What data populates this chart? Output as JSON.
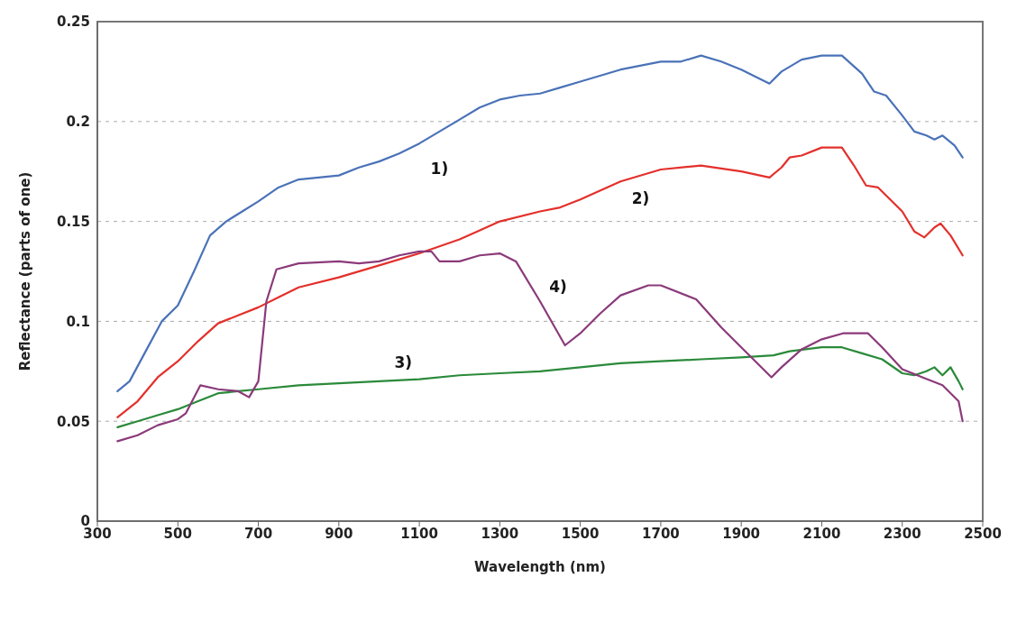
{
  "chart_data": {
    "type": "line",
    "xlabel": "Wavelength (nm)",
    "ylabel": "Reflectance (parts of one)",
    "xlim": [
      300,
      2500
    ],
    "xticks": [
      300,
      500,
      700,
      900,
      1100,
      1300,
      1500,
      1700,
      1900,
      2100,
      2300,
      2500
    ],
    "ylim": [
      0,
      0.25
    ],
    "yticks": [
      0,
      0.05,
      0.1,
      0.15,
      0.2,
      0.25
    ],
    "grid": "y",
    "legend": false,
    "marker": "none",
    "line_style": "solid",
    "annotations": [
      "1)",
      "2)",
      "3)",
      "4)"
    ],
    "series": [
      {
        "color": "#4a72b8",
        "x": [
          350,
          380,
          420,
          460,
          500,
          540,
          580,
          620,
          660,
          700,
          750,
          800,
          850,
          900,
          950,
          1000,
          1050,
          1100,
          1150,
          1200,
          1250,
          1300,
          1350,
          1400,
          1450,
          1500,
          1600,
          1700,
          1750,
          1800,
          1850,
          1900,
          1970,
          2000,
          2050,
          2100,
          2150,
          2200,
          2230,
          2260,
          2300,
          2330,
          2360,
          2380,
          2400,
          2430,
          2450
        ],
        "values": [
          0.065,
          0.07,
          0.085,
          0.1,
          0.108,
          0.125,
          0.143,
          0.15,
          0.155,
          0.16,
          0.167,
          0.171,
          0.172,
          0.173,
          0.177,
          0.18,
          0.184,
          0.189,
          0.195,
          0.201,
          0.207,
          0.211,
          0.213,
          0.214,
          0.217,
          0.22,
          0.226,
          0.23,
          0.23,
          0.233,
          0.23,
          0.226,
          0.219,
          0.225,
          0.231,
          0.233,
          0.233,
          0.224,
          0.215,
          0.213,
          0.203,
          0.195,
          0.193,
          0.191,
          0.193,
          0.188,
          0.182
        ]
      },
      {
        "color": "#e3302b",
        "x": [
          350,
          400,
          450,
          500,
          550,
          600,
          650,
          700,
          750,
          800,
          900,
          1000,
          1100,
          1200,
          1300,
          1400,
          1450,
          1500,
          1600,
          1700,
          1800,
          1900,
          1970,
          2000,
          2020,
          2050,
          2100,
          2150,
          2180,
          2210,
          2240,
          2300,
          2330,
          2355,
          2380,
          2395,
          2420,
          2450
        ],
        "values": [
          0.052,
          0.06,
          0.072,
          0.08,
          0.09,
          0.099,
          0.103,
          0.107,
          0.112,
          0.117,
          0.122,
          0.128,
          0.134,
          0.141,
          0.15,
          0.155,
          0.157,
          0.161,
          0.17,
          0.176,
          0.178,
          0.175,
          0.172,
          0.177,
          0.182,
          0.183,
          0.187,
          0.187,
          0.178,
          0.168,
          0.167,
          0.155,
          0.145,
          0.142,
          0.147,
          0.149,
          0.143,
          0.133
        ]
      },
      {
        "color": "#2a8a3a",
        "x": [
          350,
          400,
          450,
          500,
          550,
          600,
          650,
          700,
          800,
          900,
          1000,
          1100,
          1200,
          1300,
          1400,
          1500,
          1600,
          1700,
          1800,
          1900,
          1980,
          2020,
          2100,
          2150,
          2200,
          2250,
          2300,
          2330,
          2360,
          2380,
          2400,
          2420,
          2440,
          2450
        ],
        "values": [
          0.047,
          0.05,
          0.053,
          0.056,
          0.06,
          0.064,
          0.065,
          0.066,
          0.068,
          0.069,
          0.07,
          0.071,
          0.073,
          0.074,
          0.075,
          0.077,
          0.079,
          0.08,
          0.081,
          0.082,
          0.083,
          0.085,
          0.087,
          0.087,
          0.084,
          0.081,
          0.074,
          0.073,
          0.075,
          0.077,
          0.073,
          0.077,
          0.07,
          0.066
        ]
      },
      {
        "color": "#8b3a7a",
        "x": [
          350,
          400,
          450,
          500,
          520,
          556,
          600,
          650,
          677,
          700,
          720,
          745,
          800,
          900,
          950,
          1000,
          1050,
          1100,
          1130,
          1150,
          1200,
          1250,
          1300,
          1340,
          1400,
          1462,
          1500,
          1550,
          1600,
          1669,
          1700,
          1788,
          1850,
          1900,
          1975,
          2000,
          2050,
          2100,
          2153,
          2215,
          2250,
          2300,
          2350,
          2400,
          2440,
          2450
        ],
        "values": [
          0.04,
          0.043,
          0.048,
          0.051,
          0.054,
          0.068,
          0.066,
          0.065,
          0.062,
          0.07,
          0.11,
          0.126,
          0.129,
          0.13,
          0.129,
          0.13,
          0.133,
          0.135,
          0.135,
          0.13,
          0.13,
          0.133,
          0.134,
          0.13,
          0.11,
          0.088,
          0.094,
          0.104,
          0.113,
          0.118,
          0.118,
          0.111,
          0.097,
          0.087,
          0.072,
          0.077,
          0.086,
          0.091,
          0.094,
          0.094,
          0.087,
          0.076,
          0.072,
          0.068,
          0.06,
          0.05
        ]
      }
    ]
  }
}
